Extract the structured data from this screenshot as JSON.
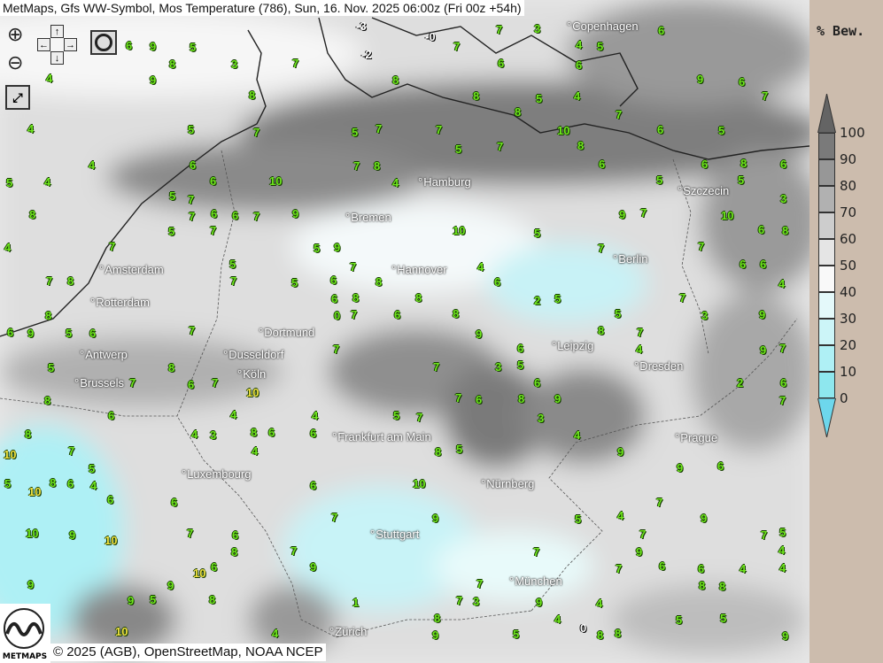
{
  "title": "MetMaps, Gfs WW-Symbol, Mos Temperature (786), Sun, 16. Nov. 2025 06:00z (Fri 00z +54h)",
  "controls": {
    "zoom_in_icon": "magnifier-plus-icon",
    "zoom_out_icon": "magnifier-minus-icon",
    "pan_up": "↑",
    "pan_down": "↓",
    "pan_left": "←",
    "pan_right": "→",
    "camera_icon": "camera-icon",
    "fullscreen_icon": "expand-icon"
  },
  "cities": [
    "Copenhagen",
    "Hamburg",
    "Szczecin",
    "Bremen",
    "Amsterdam",
    "Hannover",
    "Berlin",
    "Rotterdam",
    "Dortmund",
    "Antwerp",
    "Dusseldorf",
    "Leipzig",
    "Dresden",
    "Brussels",
    "Köln",
    "Frankfurt am Main",
    "Prague",
    "Luxembourg",
    "Nürnberg",
    "Stuttgart",
    "München",
    "Zürich"
  ],
  "temperature_labels": [
    "8",
    "7",
    "1",
    "5",
    "8",
    "8",
    "7",
    "5",
    "3",
    "0",
    "2",
    "6",
    "5",
    "4",
    "9",
    "8",
    "7",
    "6",
    "3",
    "3",
    "3",
    "4",
    "5",
    "5",
    "6",
    "4",
    "9",
    "8",
    "7",
    "8",
    "8",
    "7",
    "7",
    "6",
    "4",
    "4",
    "4",
    "5",
    "5",
    "6",
    "8",
    "7",
    "5",
    "5",
    "6",
    "4",
    "4",
    "5",
    "4",
    "4",
    "7",
    "6",
    "6",
    "7",
    "6",
    "5",
    "6",
    "5",
    "6",
    "5",
    "10",
    "8",
    "7",
    "7",
    "7",
    "8",
    "7",
    "6",
    "6",
    "6",
    "7",
    "7",
    "7",
    "6",
    "6",
    "5",
    "9",
    "9",
    "8",
    "9",
    "9",
    "8",
    "7",
    "7",
    "7",
    "7",
    "6",
    "7",
    "10",
    "9",
    "9",
    "10",
    "10",
    "9",
    "9",
    "8",
    "8",
    "7",
    "7",
    "7",
    "7",
    "6",
    "7",
    "6",
    "8",
    "9",
    "9",
    "9",
    "9",
    "8",
    "8",
    "8",
    "7",
    "7",
    "7",
    "6",
    "6",
    "6",
    "5",
    "5",
    "9",
    "9",
    "9",
    "9",
    "8",
    "8",
    "7",
    "7",
    "6",
    "6",
    "6",
    "6",
    "5",
    "5",
    "4",
    "4",
    "10",
    "9",
    "9",
    "8",
    "8",
    "7",
    "7",
    "7",
    "7",
    "6",
    "6",
    "5",
    "5",
    "5",
    "5",
    "4",
    "4",
    "9",
    "9",
    "8",
    "8",
    "8",
    "7",
    "7",
    "6",
    "6",
    "6",
    "5",
    "5",
    "4",
    "4",
    "3",
    "10",
    "9",
    "8",
    "8",
    "7",
    "7",
    "6",
    "6",
    "6",
    "5",
    "5",
    "4",
    "4",
    "4",
    "2",
    "8",
    "8",
    "7",
    "7",
    "7",
    "6",
    "6",
    "5",
    "5",
    "5",
    "4",
    "4",
    "3",
    "3",
    "9",
    "8",
    "8",
    "7",
    "7",
    "6",
    "6",
    "6",
    "5",
    "5",
    "4",
    "4",
    "4",
    "3"
  ],
  "special_labels": {
    "white": [
      "-3",
      "-0",
      "-2",
      "0"
    ],
    "yellow": [
      "10",
      "10",
      "10",
      "10",
      "10",
      "10"
    ]
  },
  "legend": {
    "title": "% Bew.",
    "ticks": [
      "100",
      "90",
      "80",
      "70",
      "60",
      "50",
      "40",
      "30",
      "20",
      "10",
      "0"
    ],
    "colors": [
      "#7a7a7a",
      "#979797",
      "#b1b1b1",
      "#cdcdcd",
      "#e5e5e5",
      "#f9f9f9",
      "#e4f9fa",
      "#ccf5f8",
      "#aff0f5",
      "#8ee7ee"
    ],
    "over_color": "#646464",
    "under_color": "#6dd7ec"
  },
  "attribution": "© 2025 (AGB), OpenStreetMap, NOAA NCEP",
  "logo_text": "METMAPS",
  "colors": {
    "temperature": "#6ee61c",
    "panel": "#ccbcad"
  }
}
